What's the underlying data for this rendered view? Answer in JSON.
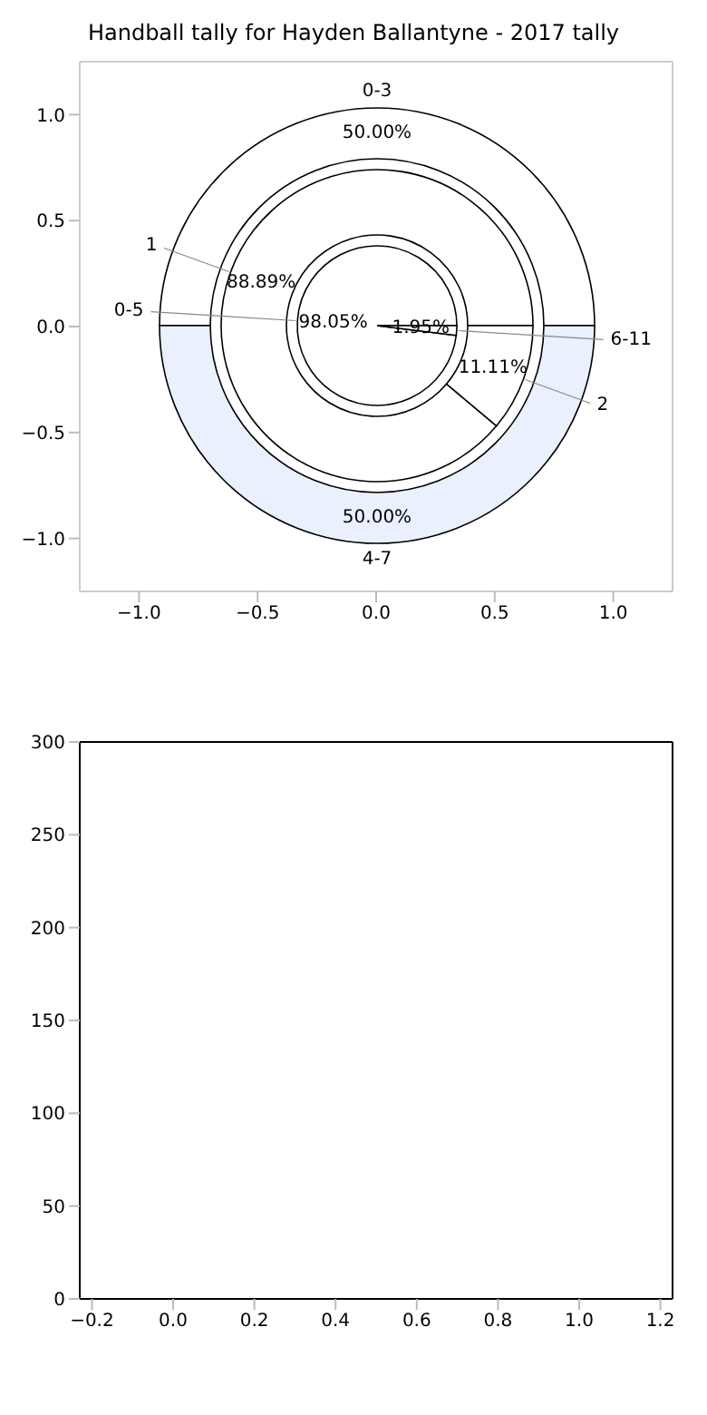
{
  "chart_data": [
    {
      "type": "scatter",
      "xlim": [
        -1.25,
        1.25
      ],
      "ylim": [
        -1.25,
        1.25
      ],
      "xticks": [
        {
          "value": -1,
          "label": "−1.0"
        },
        {
          "value": -0.5,
          "label": "−0.5"
        },
        {
          "value": 0,
          "label": "0.0"
        },
        {
          "value": 0.5,
          "label": "0.5"
        },
        {
          "value": 1,
          "label": "1.0"
        }
      ],
      "yticks": [
        {
          "value": -1,
          "label": "−1.0"
        },
        {
          "value": -0.5,
          "label": "−0.5"
        },
        {
          "value": 0,
          "label": "0.0"
        },
        {
          "value": 0.5,
          "label": "0.5"
        },
        {
          "value": 1,
          "label": "1.0"
        }
      ]
    },
    {
      "type": "donut",
      "title": "Handball tally for Hayden Ballantyne - 2017 tally",
      "categories": [
        "0-3",
        "4-7"
      ],
      "values": [
        50,
        50
      ],
      "colors": [
        "#ffffff",
        "#eaf0fd"
      ],
      "value_labels": [
        "50.00%",
        "50.00%"
      ]
    },
    {
      "type": "donut",
      "categories": [
        "1",
        "2"
      ],
      "values": [
        88.89,
        11.11
      ],
      "colors": [
        "#ffffff",
        "#ffffff"
      ],
      "value_labels": [
        "88.89%",
        "11.11%"
      ]
    },
    {
      "type": "pie",
      "categories": [
        "0-5",
        "6-11"
      ],
      "values": [
        98.05,
        1.95
      ],
      "colors": [
        "#ffffff",
        "#ffffff"
      ],
      "value_labels": [
        "98.05%",
        "1.95%"
      ]
    },
    {
      "type": "scatter",
      "xlim": [
        -0.23,
        1.23
      ],
      "xticks": [
        {
          "value": -0.2,
          "label": "−0.2"
        },
        {
          "value": 0,
          "label": "0.0"
        },
        {
          "value": 0.2,
          "label": "0.2"
        },
        {
          "value": 0.4,
          "label": "0.4"
        },
        {
          "value": 0.6,
          "label": "0.6"
        },
        {
          "value": 0.8,
          "label": "0.8"
        },
        {
          "value": 1,
          "label": "1.0"
        },
        {
          "value": 1.2,
          "label": "1.2"
        }
      ],
      "ylim": [
        0,
        300
      ],
      "yticks": [
        0,
        50,
        100,
        150,
        200,
        250,
        300
      ]
    }
  ]
}
